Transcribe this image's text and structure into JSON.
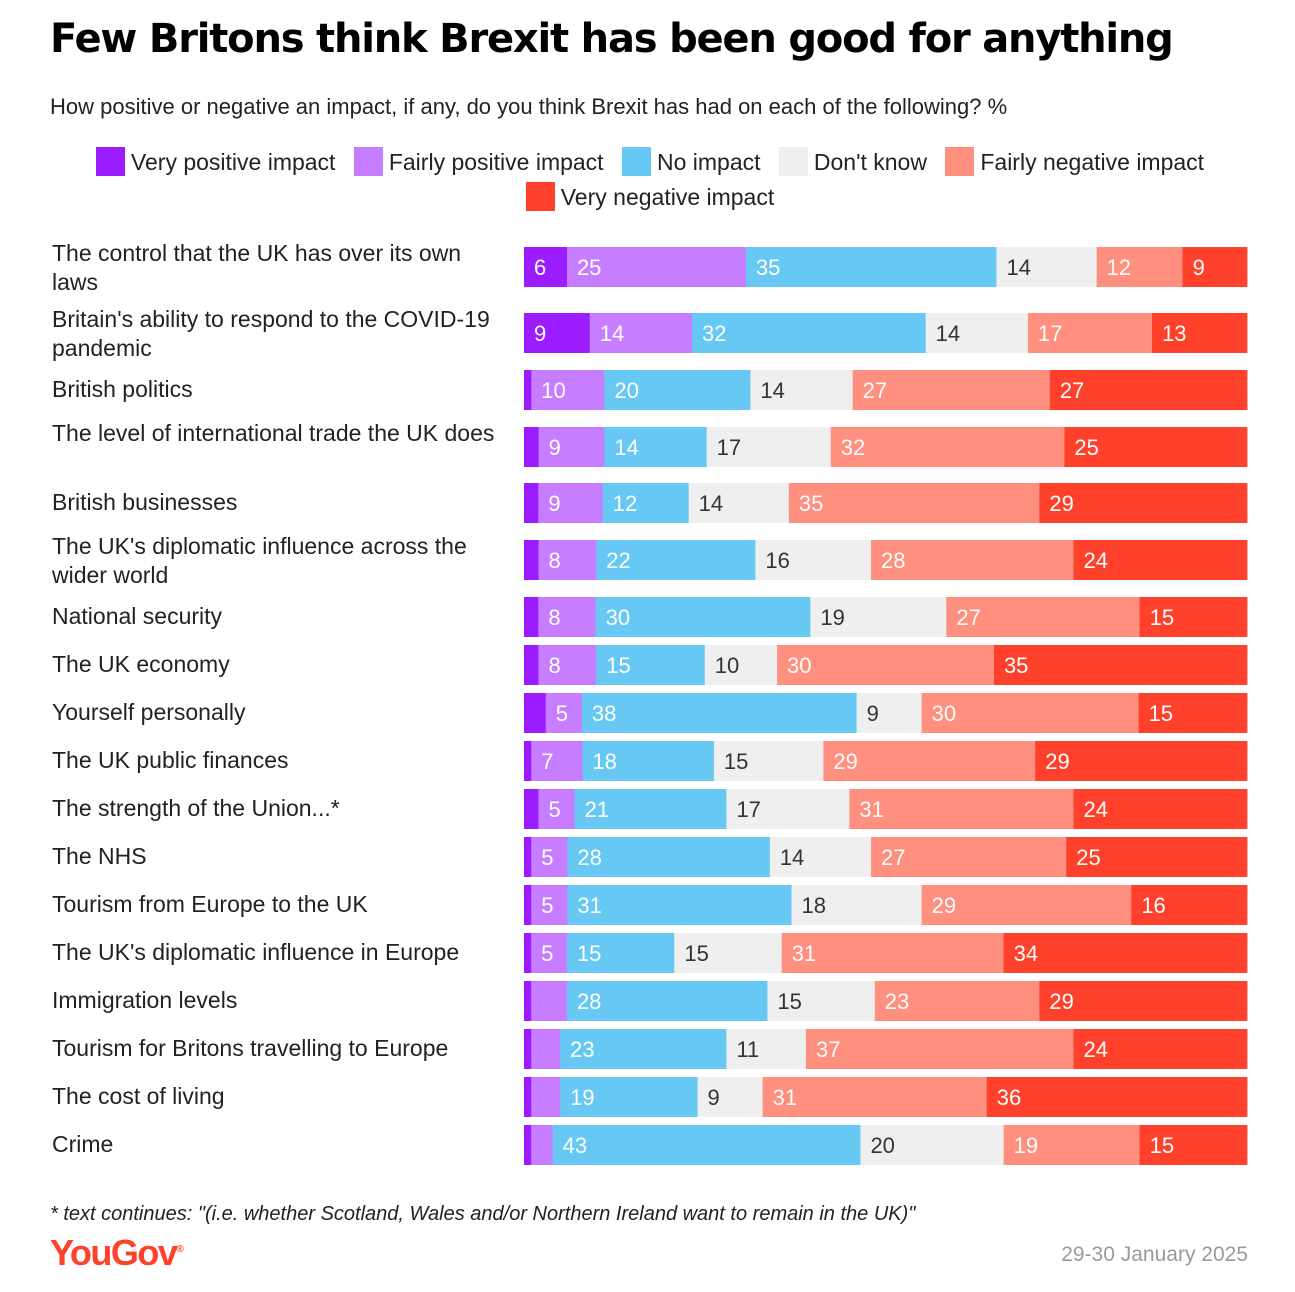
{
  "title": "Few Britons think Brexit has been good for anything",
  "subtitle": "How positive or negative an impact, if any, do you think Brexit has had on each of the following? %",
  "footnote": "* text continues: \"(i.e. whether Scotland, Wales and/or Northern Ireland want to remain in the UK)\"",
  "brand": "YouGov",
  "brand_mark": "®",
  "date": "29-30 January 2025",
  "chart_data": {
    "type": "stacked-bar-horizontal",
    "title": "Few Britons think Brexit has been good for anything",
    "unit": "%",
    "series": [
      {
        "name": "Very positive impact",
        "color": "#9a1cff"
      },
      {
        "name": "Fairly positive impact",
        "color": "#c77dff"
      },
      {
        "name": "No impact",
        "color": "#66c8f3"
      },
      {
        "name": "Don't know",
        "color": "#efefef"
      },
      {
        "name": "Fairly negative impact",
        "color": "#ff8f7e"
      },
      {
        "name": "Very negative impact",
        "color": "#ff412c"
      }
    ],
    "rows": [
      {
        "label": "The control that the UK has over its own laws",
        "values": [
          6,
          25,
          35,
          14,
          12,
          9
        ],
        "shown": [
          "6",
          "25",
          "35",
          "14",
          "12",
          "9"
        ]
      },
      {
        "label": "Britain's ability to respond to the COVID-19 pandemic",
        "values": [
          9,
          14,
          32,
          14,
          17,
          13
        ],
        "shown": [
          "9",
          "14",
          "32",
          "14",
          "17",
          "13"
        ]
      },
      {
        "label": "British politics",
        "values": [
          1,
          10,
          20,
          14,
          27,
          27
        ],
        "shown": [
          "",
          "10",
          "20",
          "14",
          "27",
          "27"
        ]
      },
      {
        "label": "The level of international trade the UK does",
        "values": [
          2,
          9,
          14,
          17,
          32,
          25
        ],
        "shown": [
          "",
          "9",
          "14",
          "17",
          "32",
          "25"
        ]
      },
      {
        "label": "British businesses",
        "values": [
          2,
          9,
          12,
          14,
          35,
          29
        ],
        "shown": [
          "",
          "9",
          "12",
          "14",
          "35",
          "29"
        ]
      },
      {
        "label": "The UK's diplomatic influence across the wider world",
        "values": [
          2,
          8,
          22,
          16,
          28,
          24
        ],
        "shown": [
          "",
          "8",
          "22",
          "16",
          "28",
          "24"
        ]
      },
      {
        "label": "National security",
        "values": [
          2,
          8,
          30,
          19,
          27,
          15
        ],
        "shown": [
          "",
          "8",
          "30",
          "19",
          "27",
          "15"
        ]
      },
      {
        "label": "The UK economy",
        "values": [
          2,
          8,
          15,
          10,
          30,
          35
        ],
        "shown": [
          "",
          "8",
          "15",
          "10",
          "30",
          "35"
        ]
      },
      {
        "label": "Yourself personally",
        "values": [
          3,
          5,
          38,
          9,
          30,
          15
        ],
        "shown": [
          "",
          "5",
          "38",
          "9",
          "30",
          "15"
        ]
      },
      {
        "label": "The UK public finances",
        "values": [
          1,
          7,
          18,
          15,
          29,
          29
        ],
        "shown": [
          "",
          "7",
          "18",
          "15",
          "29",
          "29"
        ]
      },
      {
        "label": "The strength of the Union...*",
        "values": [
          2,
          5,
          21,
          17,
          31,
          24
        ],
        "shown": [
          "",
          "5",
          "21",
          "17",
          "31",
          "24"
        ]
      },
      {
        "label": "The NHS",
        "values": [
          1,
          5,
          28,
          14,
          27,
          25
        ],
        "shown": [
          "",
          "5",
          "28",
          "14",
          "27",
          "25"
        ]
      },
      {
        "label": "Tourism from Europe to the UK",
        "values": [
          1,
          5,
          31,
          18,
          29,
          16
        ],
        "shown": [
          "",
          "5",
          "31",
          "18",
          "29",
          "16"
        ]
      },
      {
        "label": "The UK's diplomatic influence in Europe",
        "values": [
          1,
          5,
          15,
          15,
          31,
          34
        ],
        "shown": [
          "",
          "5",
          "15",
          "15",
          "31",
          "34"
        ]
      },
      {
        "label": "Immigration levels",
        "values": [
          1,
          5,
          28,
          15,
          23,
          29
        ],
        "shown": [
          "",
          "",
          "28",
          "15",
          "23",
          "29"
        ]
      },
      {
        "label": "Tourism for Britons travelling to Europe",
        "values": [
          1,
          4,
          23,
          11,
          37,
          24
        ],
        "shown": [
          "",
          "",
          "23",
          "11",
          "37",
          "24"
        ]
      },
      {
        "label": "The cost of living",
        "values": [
          1,
          4,
          19,
          9,
          31,
          36
        ],
        "shown": [
          "",
          "",
          "19",
          "9",
          "31",
          "36"
        ]
      },
      {
        "label": "Crime",
        "values": [
          1,
          3,
          43,
          20,
          19,
          15
        ],
        "shown": [
          "",
          "",
          "43",
          "20",
          "19",
          "15"
        ]
      }
    ]
  }
}
